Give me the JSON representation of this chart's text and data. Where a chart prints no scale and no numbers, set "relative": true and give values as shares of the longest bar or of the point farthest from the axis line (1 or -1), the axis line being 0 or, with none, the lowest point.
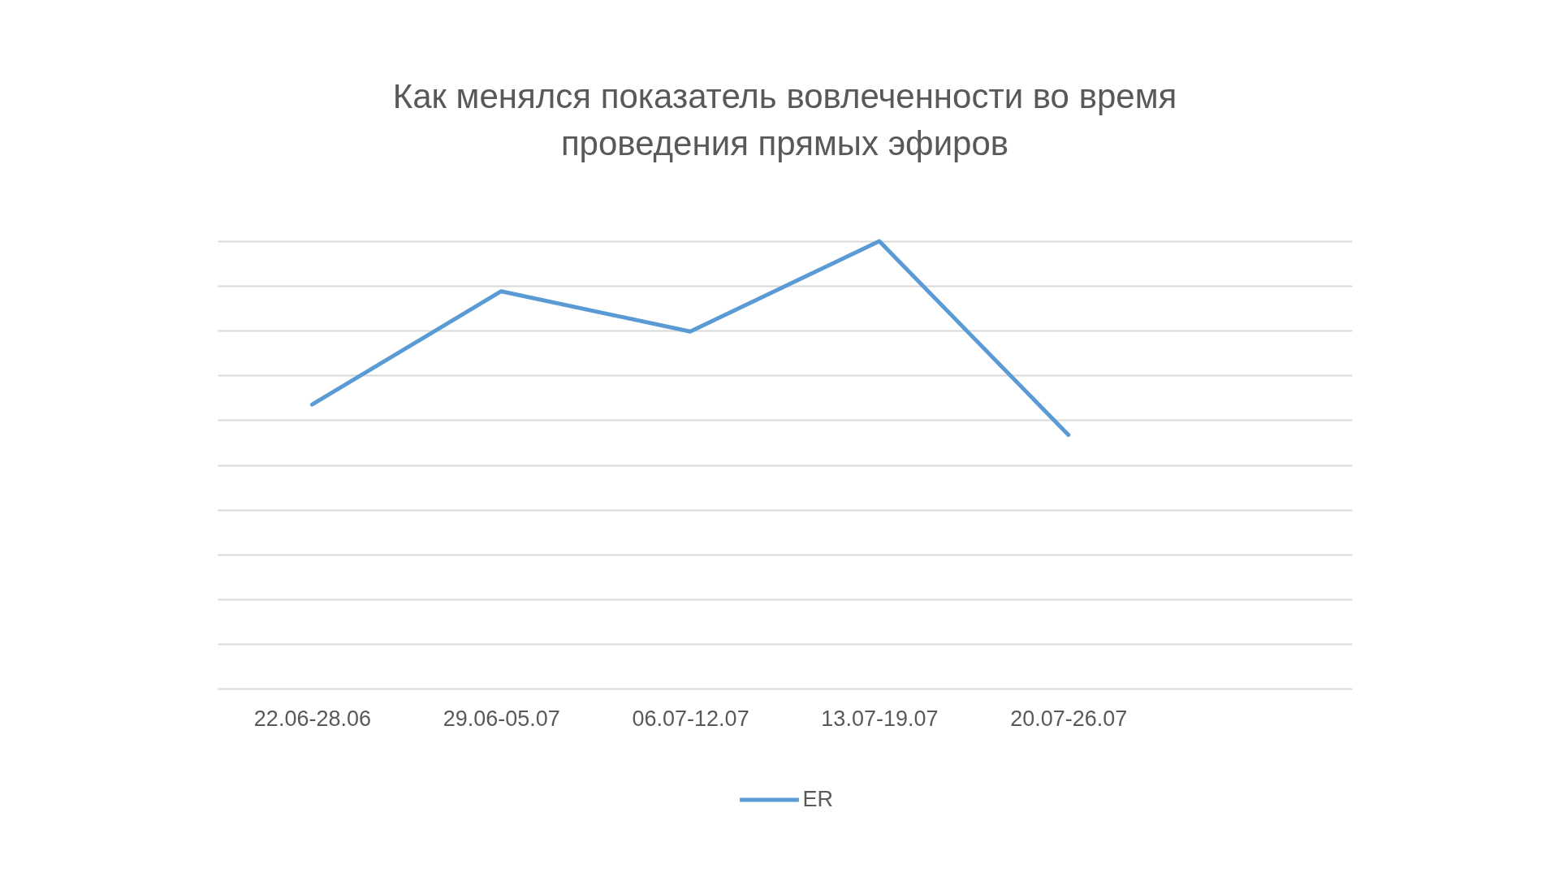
{
  "chart_data": {
    "type": "line",
    "title": "Как менялся показатель вовлеченности во время проведения прямых эфиров",
    "categories": [
      "22.06-28.06",
      "29.06-05.07",
      "06.07-12.07",
      "13.07-19.07",
      "20.07-26.07",
      null
    ],
    "relative": true,
    "series": [
      {
        "name": "ER",
        "color": "#5b9bd5",
        "values": [
          0.635,
          0.888,
          0.798,
          1,
          0.567,
          null
        ]
      }
    ],
    "grid": "y",
    "legend": "bottom"
  }
}
